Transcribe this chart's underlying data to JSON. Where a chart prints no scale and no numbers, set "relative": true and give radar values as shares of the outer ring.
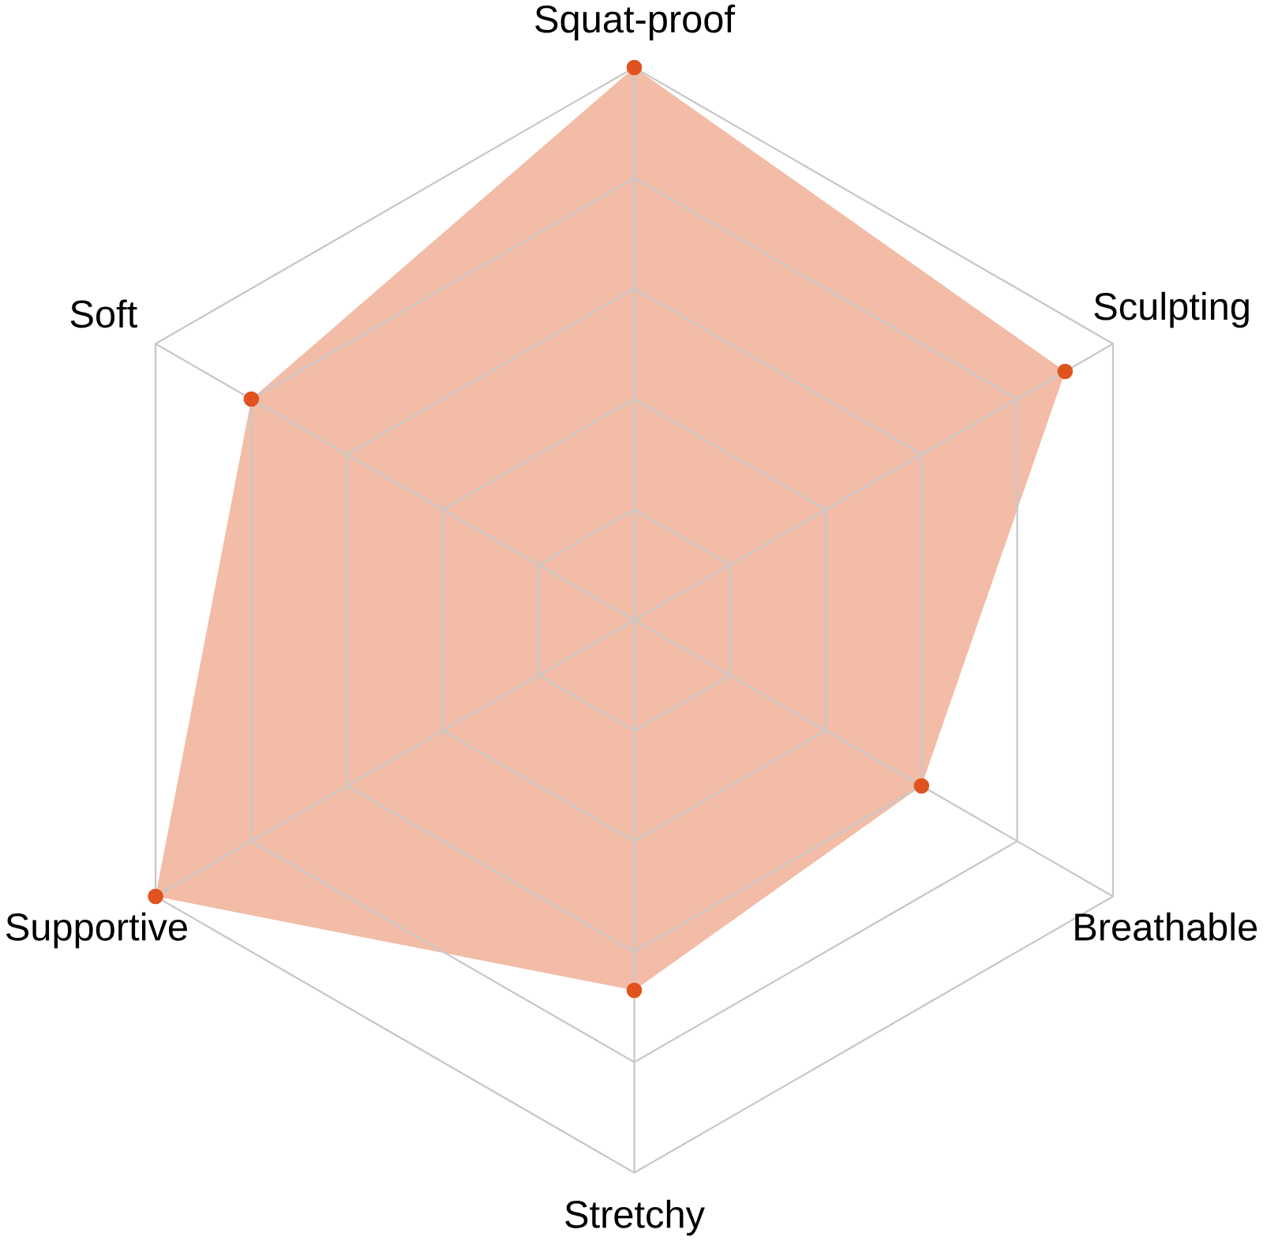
{
  "chart_data": {
    "type": "radar",
    "relative": true,
    "categories": [
      "Squat-proof",
      "Sculpting",
      "Breathable",
      "Stretchy",
      "Supportive",
      "Soft"
    ],
    "series": [
      {
        "color": "#f2bca6",
        "values": [
          1.0,
          0.9,
          0.6,
          0.67,
          1.0,
          0.8
        ]
      }
    ],
    "grid": true,
    "marker": "circle"
  }
}
